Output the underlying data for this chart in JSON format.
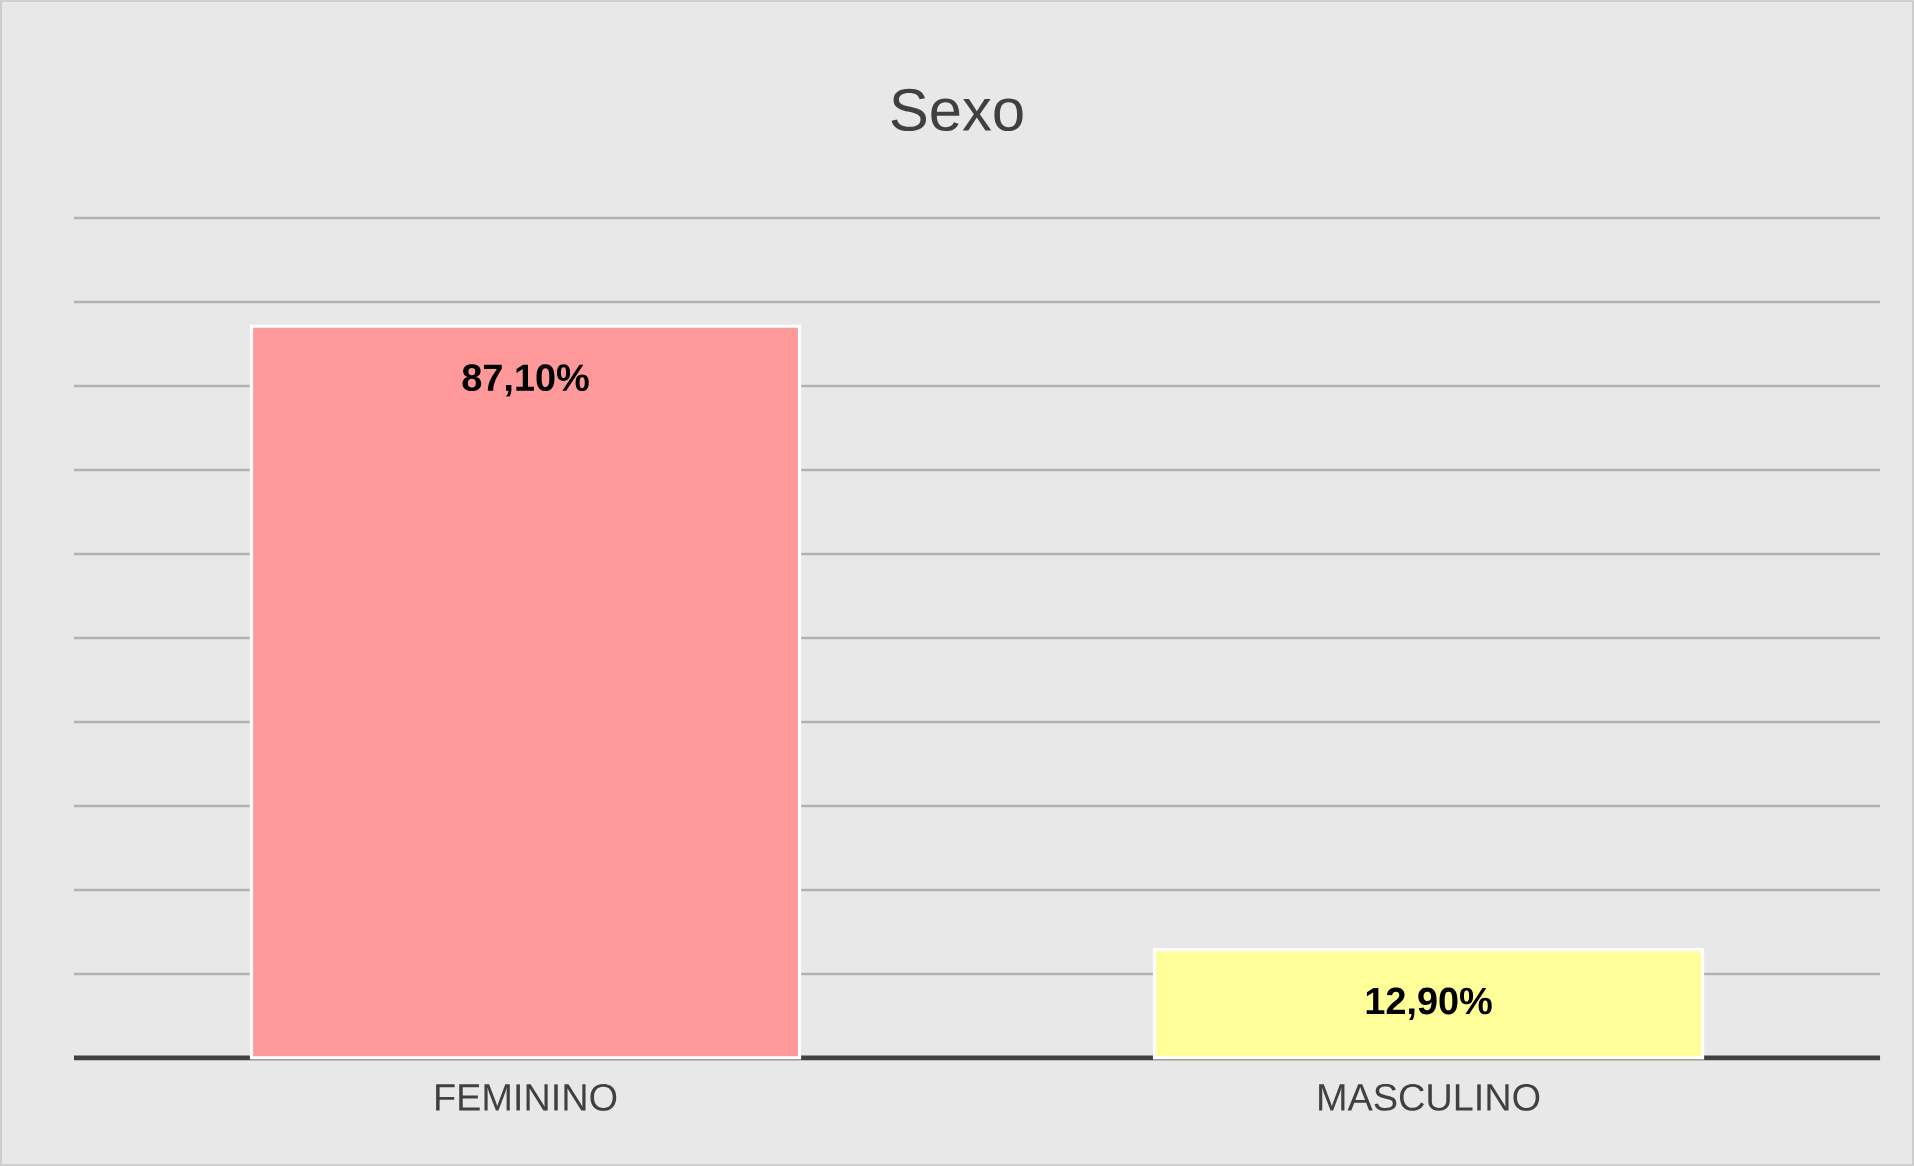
{
  "chart_data": {
    "type": "bar",
    "title": "Sexo",
    "categories": [
      "FEMININO",
      "MASCULINO"
    ],
    "values": [
      87.1,
      12.9
    ],
    "colors": [
      "#ff9999",
      "#ffff99"
    ],
    "value_labels": [
      "87,10%",
      "12,90%"
    ],
    "tick_labels": "x",
    "grid": "y"
  }
}
